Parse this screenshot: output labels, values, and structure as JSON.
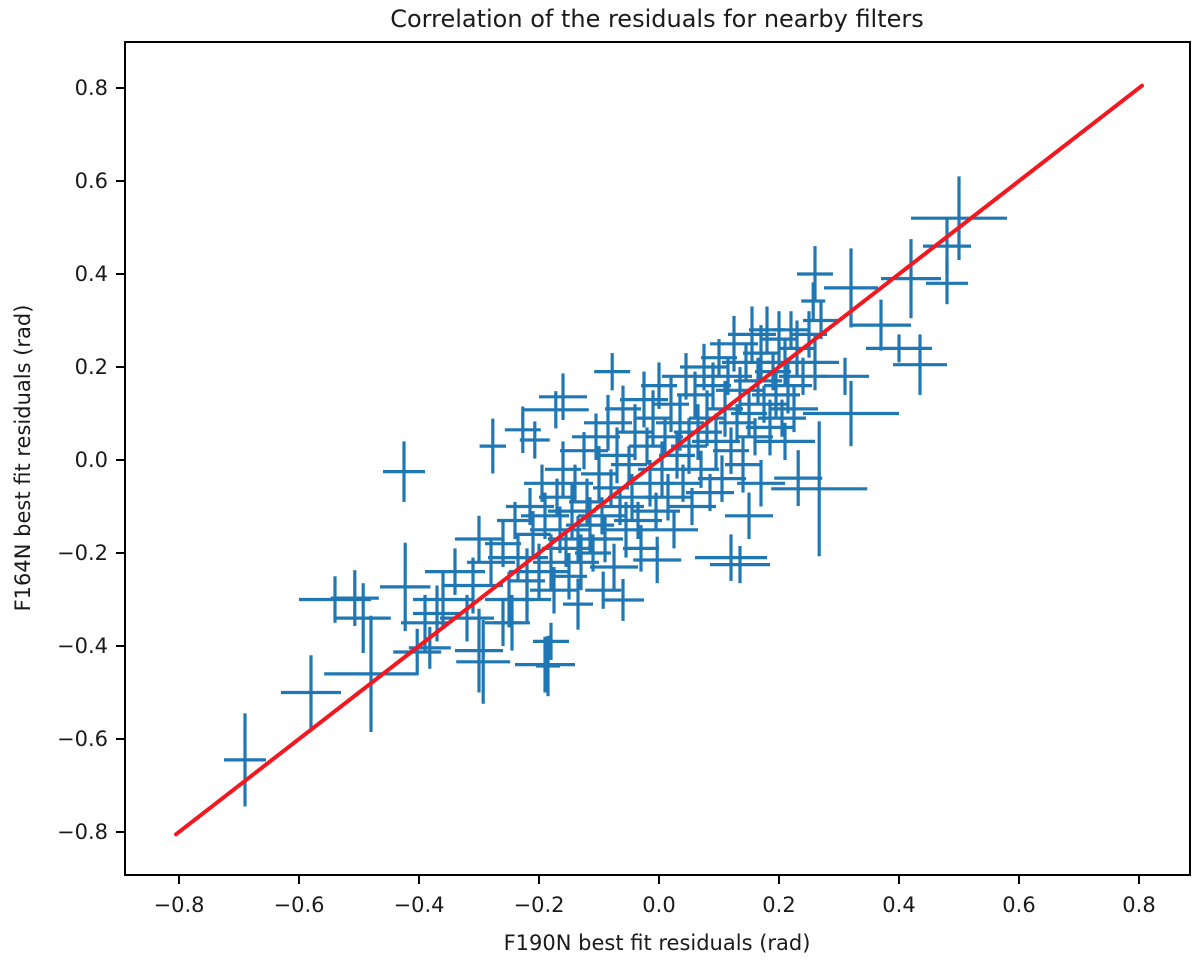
{
  "page": {
    "title": "Correlation of the residuals for nearby filters"
  },
  "chart_data": {
    "type": "scatter",
    "subtype": "errorbar-cross-scatter",
    "title": "Correlation of the residuals for nearby filters",
    "xlabel": "F190N best fit residuals (rad)",
    "ylabel": "F164N best fit residuals (rad)",
    "xlim": [
      -0.89,
      0.885
    ],
    "ylim": [
      -0.892,
      0.899
    ],
    "grid": false,
    "legend": "none",
    "xticks": {
      "values": [
        -0.8,
        -0.6,
        -0.4,
        -0.2,
        0.0,
        0.2,
        0.4,
        0.6,
        0.8
      ],
      "labels": [
        "−0.8",
        "−0.6",
        "−0.4",
        "−0.2",
        "0.0",
        "0.2",
        "0.4",
        "0.6",
        "0.8"
      ]
    },
    "yticks": {
      "values": [
        -0.8,
        -0.6,
        -0.4,
        -0.2,
        0.0,
        0.2,
        0.4,
        0.6,
        0.8
      ],
      "labels": [
        "−0.8",
        "−0.6",
        "−0.4",
        "−0.2",
        "0.0",
        "0.2",
        "0.4",
        "0.6",
        "0.8"
      ]
    },
    "colors": {
      "points": "#1f77b4",
      "identity_line": "#f3181f",
      "axes": "#000000",
      "text": "#1a1a1a",
      "background": "#ffffff"
    },
    "identity_line": {
      "x0": -0.805,
      "y0": -0.805,
      "x1": 0.805,
      "y1": 0.805
    },
    "points_format": [
      "x",
      "y",
      "xerr",
      "yerr"
    ],
    "points": [
      [
        -0.69,
        -0.645,
        0.035,
        0.1
      ],
      [
        -0.58,
        -0.5,
        0.05,
        0.08
      ],
      [
        -0.54,
        -0.3,
        0.06,
        0.05
      ],
      [
        -0.507,
        -0.297,
        0.04,
        0.06
      ],
      [
        -0.493,
        -0.34,
        0.046,
        0.075
      ],
      [
        -0.48,
        -0.46,
        0.078,
        0.125
      ],
      [
        -0.423,
        -0.273,
        0.042,
        0.095
      ],
      [
        -0.403,
        -0.413,
        0.04,
        0.05
      ],
      [
        -0.382,
        -0.404,
        0.035,
        0.045
      ],
      [
        -0.39,
        -0.35,
        0.04,
        0.06
      ],
      [
        -0.37,
        -0.33,
        0.04,
        0.06
      ],
      [
        -0.425,
        -0.025,
        0.035,
        0.065
      ],
      [
        -0.34,
        -0.24,
        0.05,
        0.05
      ],
      [
        -0.32,
        -0.34,
        0.045,
        0.05
      ],
      [
        -0.3,
        -0.41,
        0.04,
        0.09
      ],
      [
        -0.293,
        -0.434,
        0.045,
        0.09
      ],
      [
        -0.19,
        -0.44,
        0.05,
        0.06
      ],
      [
        -0.18,
        -0.39,
        0.03,
        0.04
      ],
      [
        -0.185,
        -0.443,
        0.02,
        0.065
      ],
      [
        -0.245,
        -0.35,
        0.03,
        0.06
      ],
      [
        -0.22,
        -0.3,
        0.04,
        0.05
      ],
      [
        -0.36,
        -0.3,
        0.05,
        0.06
      ],
      [
        -0.31,
        -0.27,
        0.05,
        0.06
      ],
      [
        -0.28,
        -0.22,
        0.04,
        0.05
      ],
      [
        -0.3,
        -0.17,
        0.04,
        0.05
      ],
      [
        -0.26,
        -0.35,
        0.03,
        0.05
      ],
      [
        -0.277,
        0.03,
        0.022,
        0.059
      ],
      [
        -0.227,
        0.065,
        0.03,
        0.05
      ],
      [
        -0.207,
        0.043,
        0.025,
        0.04
      ],
      [
        -0.16,
        0.136,
        0.04,
        0.05
      ],
      [
        -0.172,
        0.108,
        0.055,
        0.04
      ],
      [
        -0.078,
        0.19,
        0.03,
        0.04
      ],
      [
        0.5,
        0.52,
        0.08,
        0.09
      ],
      [
        0.48,
        0.46,
        0.04,
        0.06
      ],
      [
        0.48,
        0.38,
        0.035,
        0.045
      ],
      [
        0.42,
        0.39,
        0.05,
        0.085
      ],
      [
        0.32,
        0.37,
        0.045,
        0.085
      ],
      [
        0.37,
        0.29,
        0.05,
        0.055
      ],
      [
        0.4,
        0.24,
        0.055,
        0.03
      ],
      [
        0.435,
        0.205,
        0.045,
        0.065
      ],
      [
        0.31,
        0.18,
        0.04,
        0.04
      ],
      [
        0.32,
        0.1,
        0.08,
        0.07
      ],
      [
        0.267,
        -0.062,
        0.08,
        0.145
      ],
      [
        0.232,
        -0.039,
        0.04,
        0.06
      ],
      [
        0.12,
        -0.21,
        0.06,
        0.05
      ],
      [
        0.135,
        -0.225,
        0.05,
        0.04
      ],
      [
        -0.003,
        -0.215,
        0.04,
        0.05
      ],
      [
        -0.06,
        -0.301,
        0.035,
        0.045
      ],
      [
        -0.093,
        -0.28,
        0.03,
        0.04
      ],
      [
        -0.135,
        -0.31,
        0.025,
        0.055
      ],
      [
        0.26,
        0.4,
        0.03,
        0.06
      ],
      [
        0.257,
        0.342,
        0.02,
        0.04
      ],
      [
        0.17,
        -0.05,
        0.04,
        0.05
      ],
      [
        0.21,
        0.04,
        0.05,
        0.04
      ],
      [
        0.15,
        -0.12,
        0.04,
        0.05
      ],
      [
        -0.26,
        -0.18,
        0.03,
        0.05
      ],
      [
        -0.25,
        -0.3,
        0.04,
        0.06
      ],
      [
        -0.24,
        -0.13,
        0.03,
        0.04
      ],
      [
        -0.235,
        -0.21,
        0.05,
        0.05
      ],
      [
        -0.22,
        -0.26,
        0.03,
        0.07
      ],
      [
        -0.215,
        -0.1,
        0.04,
        0.04
      ],
      [
        -0.21,
        -0.16,
        0.03,
        0.05
      ],
      [
        -0.2,
        -0.24,
        0.05,
        0.06
      ],
      [
        -0.195,
        -0.05,
        0.03,
        0.04
      ],
      [
        -0.19,
        -0.12,
        0.04,
        0.05
      ],
      [
        -0.18,
        -0.22,
        0.03,
        0.06
      ],
      [
        -0.175,
        -0.28,
        0.04,
        0.05
      ],
      [
        -0.17,
        -0.08,
        0.03,
        0.04
      ],
      [
        -0.165,
        -0.15,
        0.05,
        0.05
      ],
      [
        -0.16,
        -0.02,
        0.03,
        0.06
      ],
      [
        -0.155,
        -0.19,
        0.04,
        0.04
      ],
      [
        -0.15,
        -0.25,
        0.03,
        0.05
      ],
      [
        -0.145,
        -0.11,
        0.04,
        0.06
      ],
      [
        -0.14,
        -0.05,
        0.03,
        0.04
      ],
      [
        -0.135,
        -0.17,
        0.05,
        0.05
      ],
      [
        -0.13,
        -0.22,
        0.03,
        0.06
      ],
      [
        -0.125,
        0.02,
        0.04,
        0.04
      ],
      [
        -0.12,
        -0.09,
        0.03,
        0.05
      ],
      [
        -0.115,
        -0.14,
        0.04,
        0.06
      ],
      [
        -0.11,
        -0.2,
        0.03,
        0.04
      ],
      [
        -0.105,
        0.05,
        0.04,
        0.05
      ],
      [
        -0.1,
        -0.03,
        0.03,
        0.06
      ],
      [
        -0.095,
        -0.12,
        0.04,
        0.04
      ],
      [
        -0.09,
        -0.17,
        0.03,
        0.05
      ],
      [
        -0.085,
        0.08,
        0.04,
        0.06
      ],
      [
        -0.08,
        -0.06,
        0.03,
        0.04
      ],
      [
        -0.075,
        -0.23,
        0.04,
        0.05
      ],
      [
        -0.07,
        0.01,
        0.03,
        0.06
      ],
      [
        -0.065,
        -0.1,
        0.04,
        0.04
      ],
      [
        -0.06,
        0.11,
        0.03,
        0.05
      ],
      [
        -0.055,
        -0.15,
        0.04,
        0.06
      ],
      [
        -0.05,
        -0.01,
        0.03,
        0.04
      ],
      [
        -0.045,
        -0.08,
        0.04,
        0.05
      ],
      [
        -0.04,
        0.06,
        0.03,
        0.06
      ],
      [
        -0.035,
        -0.13,
        0.04,
        0.04
      ],
      [
        -0.03,
        -0.19,
        0.03,
        0.05
      ],
      [
        -0.025,
        0.13,
        0.04,
        0.06
      ],
      [
        -0.02,
        0.03,
        0.03,
        0.04
      ],
      [
        -0.015,
        -0.05,
        0.04,
        0.05
      ],
      [
        -0.01,
        0.09,
        0.03,
        0.06
      ],
      [
        -0.005,
        -0.11,
        0.04,
        0.04
      ],
      [
        0.0,
        0.16,
        0.03,
        0.05
      ],
      [
        0.005,
        -0.02,
        0.04,
        0.06
      ],
      [
        0.01,
        0.05,
        0.03,
        0.04
      ],
      [
        0.015,
        -0.08,
        0.04,
        0.05
      ],
      [
        0.02,
        0.12,
        0.03,
        0.06
      ],
      [
        0.025,
        -0.15,
        0.04,
        0.04
      ],
      [
        0.03,
        0.01,
        0.03,
        0.05
      ],
      [
        0.035,
        0.08,
        0.04,
        0.06
      ],
      [
        0.04,
        -0.05,
        0.03,
        0.04
      ],
      [
        0.045,
        0.18,
        0.04,
        0.05
      ],
      [
        0.05,
        0.03,
        0.03,
        0.06
      ],
      [
        0.055,
        -0.1,
        0.04,
        0.04
      ],
      [
        0.06,
        0.14,
        0.03,
        0.05
      ],
      [
        0.065,
        0.06,
        0.04,
        0.06
      ],
      [
        0.07,
        -0.02,
        0.03,
        0.04
      ],
      [
        0.075,
        0.2,
        0.04,
        0.05
      ],
      [
        0.08,
        0.09,
        0.03,
        0.06
      ],
      [
        0.085,
        -0.07,
        0.04,
        0.04
      ],
      [
        0.09,
        0.16,
        0.03,
        0.05
      ],
      [
        0.095,
        0.04,
        0.04,
        0.06
      ],
      [
        0.1,
        0.22,
        0.03,
        0.04
      ],
      [
        0.105,
        -0.04,
        0.04,
        0.05
      ],
      [
        0.11,
        0.11,
        0.03,
        0.06
      ],
      [
        0.115,
        0.18,
        0.04,
        0.04
      ],
      [
        0.12,
        0.02,
        0.03,
        0.05
      ],
      [
        0.125,
        0.25,
        0.04,
        0.06
      ],
      [
        0.13,
        0.08,
        0.03,
        0.04
      ],
      [
        0.135,
        0.15,
        0.04,
        0.05
      ],
      [
        0.14,
        -0.01,
        0.03,
        0.06
      ],
      [
        0.145,
        0.21,
        0.04,
        0.04
      ],
      [
        0.15,
        0.1,
        0.03,
        0.05
      ],
      [
        0.155,
        0.27,
        0.04,
        0.06
      ],
      [
        0.16,
        0.05,
        0.03,
        0.04
      ],
      [
        0.165,
        0.17,
        0.04,
        0.05
      ],
      [
        0.17,
        0.23,
        0.03,
        0.06
      ],
      [
        0.175,
        0.12,
        0.04,
        0.04
      ],
      [
        0.18,
        0.28,
        0.03,
        0.05
      ],
      [
        0.185,
        0.07,
        0.04,
        0.06
      ],
      [
        0.19,
        0.19,
        0.03,
        0.04
      ],
      [
        0.195,
        0.14,
        0.04,
        0.05
      ],
      [
        0.2,
        0.26,
        0.03,
        0.06
      ],
      [
        0.205,
        0.09,
        0.04,
        0.04
      ],
      [
        0.21,
        0.21,
        0.03,
        0.05
      ],
      [
        0.215,
        0.16,
        0.04,
        0.06
      ],
      [
        0.22,
        0.28,
        0.03,
        0.04
      ],
      [
        0.225,
        0.11,
        0.04,
        0.05
      ],
      [
        0.23,
        0.24,
        0.03,
        0.06
      ],
      [
        0.24,
        0.18,
        0.04,
        0.04
      ],
      [
        0.25,
        0.27,
        0.03,
        0.05
      ],
      [
        0.26,
        0.21,
        0.04,
        0.06
      ],
      [
        0.27,
        0.3,
        0.03,
        0.04
      ]
    ]
  }
}
